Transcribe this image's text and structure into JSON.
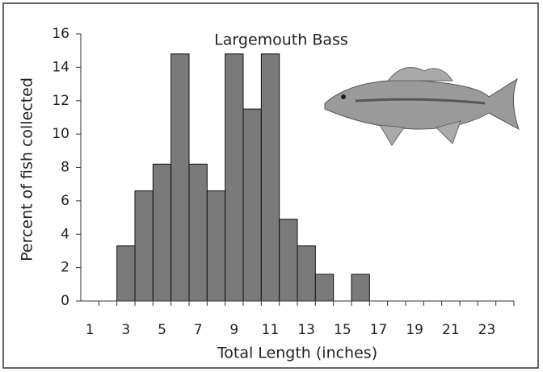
{
  "chart_data": {
    "type": "bar",
    "title": "Largemouth Bass",
    "x_label": "Total Length (inches)",
    "y_label": "Percent of fish collected",
    "categories": [
      1,
      null,
      3,
      null,
      5,
      null,
      7,
      null,
      9,
      null,
      11,
      null,
      13,
      null,
      15,
      null,
      17,
      null,
      19,
      null,
      21,
      null,
      23,
      null
    ],
    "values": [
      0,
      0,
      3.3,
      6.6,
      8.2,
      14.8,
      8.2,
      6.6,
      14.8,
      11.5,
      14.8,
      4.9,
      3.3,
      1.6,
      0,
      1.6,
      0,
      0,
      0,
      0,
      0,
      0,
      0,
      0
    ],
    "color": "#7a7a7a",
    "ylim": [
      0,
      16
    ],
    "yticks": [
      0,
      2,
      4,
      6,
      8,
      10,
      12,
      14,
      16
    ],
    "grid": false
  }
}
